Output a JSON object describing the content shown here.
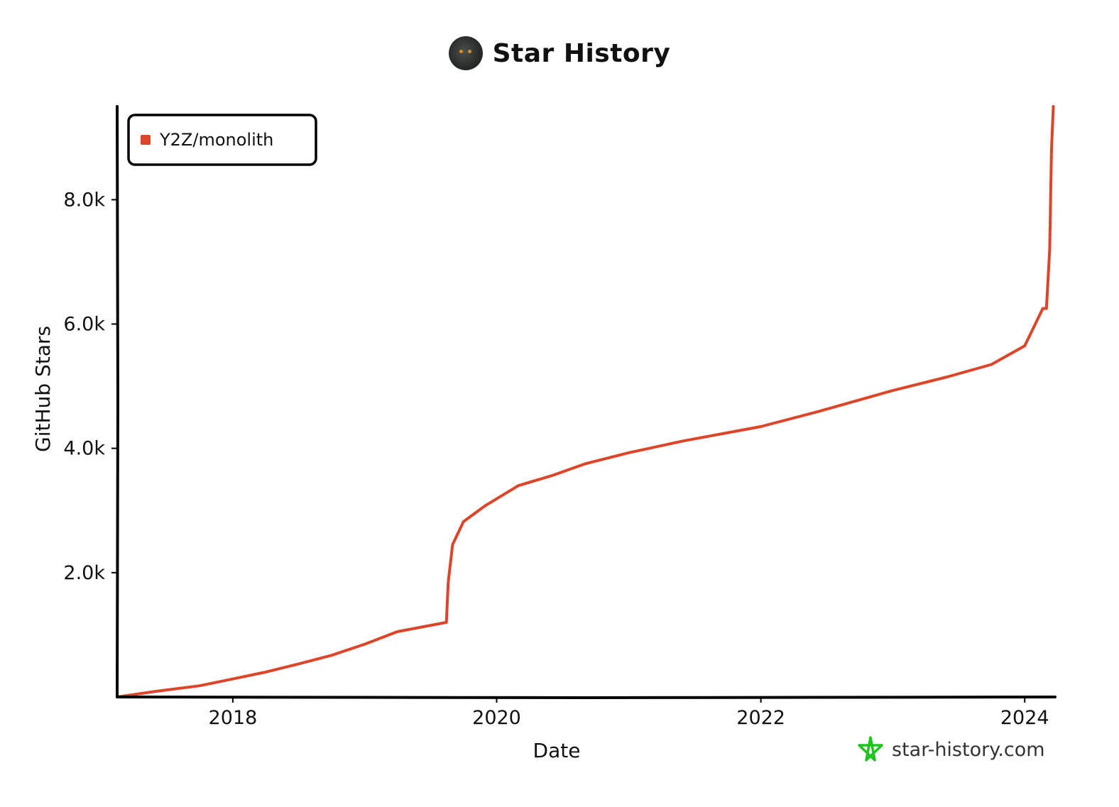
{
  "header": {
    "title": "Star History"
  },
  "watermark": {
    "text": "star-history.com",
    "icon": "star-logo-icon",
    "icon_color": "#1ec41e"
  },
  "colors": {
    "series": "#dd4528",
    "axis": "#000000"
  },
  "chart_data": {
    "type": "line",
    "xlabel": "Date",
    "ylabel": "GitHub Stars",
    "x_ticks": [
      "2018",
      "2020",
      "2022",
      "2024"
    ],
    "y_ticks": [
      "2.0k",
      "4.0k",
      "6.0k",
      "8.0k"
    ],
    "y_tick_values": [
      2000,
      4000,
      6000,
      8000
    ],
    "xlim": [
      "2017-02-15",
      "2024-03-25"
    ],
    "ylim": [
      0,
      9500
    ],
    "legend": {
      "position": "top-left",
      "entries": [
        "Y2Z/monolith"
      ]
    },
    "series": [
      {
        "name": "Y2Z/monolith",
        "x": [
          "2017-02-15",
          "2017-06-01",
          "2017-10-01",
          "2018-01-01",
          "2018-04-01",
          "2018-07-01",
          "2018-10-01",
          "2019-01-01",
          "2019-04-01",
          "2019-08-15",
          "2019-08-20",
          "2019-09-01",
          "2019-10-01",
          "2019-12-01",
          "2020-03-01",
          "2020-06-01",
          "2020-09-01",
          "2021-01-01",
          "2021-06-01",
          "2022-01-01",
          "2022-06-01",
          "2023-01-01",
          "2023-06-01",
          "2023-10-01",
          "2024-01-01",
          "2024-02-20",
          "2024-03-01",
          "2024-03-10",
          "2024-03-15",
          "2024-03-20"
        ],
        "y": [
          0,
          90,
          180,
          290,
          400,
          530,
          670,
          850,
          1050,
          1200,
          1850,
          2450,
          2820,
          3080,
          3400,
          3560,
          3750,
          3930,
          4120,
          4350,
          4580,
          4930,
          5150,
          5350,
          5650,
          6250,
          6250,
          7200,
          8800,
          9500
        ]
      }
    ]
  }
}
